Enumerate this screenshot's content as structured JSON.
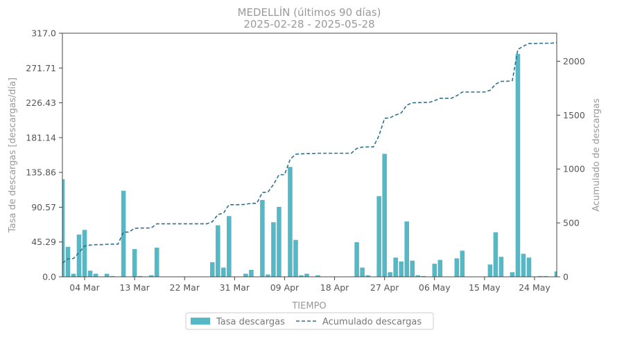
{
  "chart_data": {
    "type": "bar",
    "title": "MEDELLÍN (últimos 90 días)",
    "subtitle": "2025-02-28  -  2025-05-28",
    "xlabel": "TIEMPO",
    "ylabel": "Tasa de descargas [descargas/día]",
    "y2label": "Acumulado de descargas",
    "ylim": [
      0,
      317.0
    ],
    "y2lim": [
      0,
      2260
    ],
    "yticks": [
      "0.0",
      "45.29",
      "90.57",
      "135.86",
      "181.14",
      "226.43",
      "271.71",
      "317.0"
    ],
    "y2ticks": [
      "0",
      "500",
      "1000",
      "1500",
      "2000"
    ],
    "xticks": [
      "04 Mar",
      "13 Mar",
      "22 Mar",
      "31 Mar",
      "09 Apr",
      "18 Apr",
      "27 Apr",
      "06 May",
      "15 May",
      "24 May"
    ],
    "legend_position": "bottom-center",
    "colors": {
      "bar": "#56b7c5",
      "line": "#2e6f8e"
    },
    "series": [
      {
        "name": "Tasa descargas",
        "kind": "bar",
        "x": [
          "2025-02-28",
          "2025-03-01",
          "2025-03-02",
          "2025-03-03",
          "2025-03-04",
          "2025-03-05",
          "2025-03-06",
          "2025-03-07",
          "2025-03-08",
          "2025-03-09",
          "2025-03-10",
          "2025-03-11",
          "2025-03-12",
          "2025-03-13",
          "2025-03-14",
          "2025-03-15",
          "2025-03-16",
          "2025-03-17",
          "2025-03-18",
          "2025-03-19",
          "2025-03-20",
          "2025-03-21",
          "2025-03-22",
          "2025-03-23",
          "2025-03-24",
          "2025-03-25",
          "2025-03-26",
          "2025-03-27",
          "2025-03-28",
          "2025-03-29",
          "2025-03-30",
          "2025-03-31",
          "2025-04-01",
          "2025-04-02",
          "2025-04-03",
          "2025-04-04",
          "2025-04-05",
          "2025-04-06",
          "2025-04-07",
          "2025-04-08",
          "2025-04-09",
          "2025-04-10",
          "2025-04-11",
          "2025-04-12",
          "2025-04-13",
          "2025-04-14",
          "2025-04-15",
          "2025-04-16",
          "2025-04-17",
          "2025-04-18",
          "2025-04-19",
          "2025-04-20",
          "2025-04-21",
          "2025-04-22",
          "2025-04-23",
          "2025-04-24",
          "2025-04-25",
          "2025-04-26",
          "2025-04-27",
          "2025-04-28",
          "2025-04-29",
          "2025-04-30",
          "2025-05-01",
          "2025-05-02",
          "2025-05-03",
          "2025-05-04",
          "2025-05-05",
          "2025-05-06",
          "2025-05-07",
          "2025-05-08",
          "2025-05-09",
          "2025-05-10",
          "2025-05-11",
          "2025-05-12",
          "2025-05-13",
          "2025-05-14",
          "2025-05-15",
          "2025-05-16",
          "2025-05-17",
          "2025-05-18",
          "2025-05-19",
          "2025-05-20",
          "2025-05-21",
          "2025-05-22",
          "2025-05-23",
          "2025-05-24",
          "2025-05-25",
          "2025-05-26",
          "2025-05-27",
          "2025-05-28"
        ],
        "values": [
          127,
          39,
          4,
          55,
          61,
          8,
          4,
          0,
          4,
          1,
          0,
          112,
          0,
          36,
          1,
          0,
          2,
          38,
          0,
          0,
          0,
          0,
          0,
          0,
          0,
          0,
          0,
          19,
          67,
          12,
          79,
          0,
          0,
          4,
          9,
          0,
          100,
          3,
          71,
          91,
          0,
          143,
          48,
          2,
          4,
          0,
          2,
          0,
          0,
          0,
          0,
          0,
          0,
          45,
          12,
          2,
          0,
          105,
          160,
          6,
          25,
          20,
          72,
          21,
          2,
          1,
          0,
          17,
          22,
          0,
          0,
          24,
          34,
          0,
          0,
          0,
          0,
          16,
          58,
          26,
          0,
          6,
          290,
          30,
          25,
          0,
          1,
          1,
          0,
          7
        ]
      },
      {
        "name": "Acumulado descargas",
        "kind": "line",
        "axis": "right",
        "x": [
          "2025-02-28",
          "2025-03-01",
          "2025-03-02",
          "2025-03-03",
          "2025-03-04",
          "2025-03-05",
          "2025-03-06",
          "2025-03-07",
          "2025-03-08",
          "2025-03-09",
          "2025-03-10",
          "2025-03-11",
          "2025-03-12",
          "2025-03-13",
          "2025-03-14",
          "2025-03-15",
          "2025-03-16",
          "2025-03-17",
          "2025-03-18",
          "2025-03-19",
          "2025-03-20",
          "2025-03-21",
          "2025-03-22",
          "2025-03-23",
          "2025-03-24",
          "2025-03-25",
          "2025-03-26",
          "2025-03-27",
          "2025-03-28",
          "2025-03-29",
          "2025-03-30",
          "2025-03-31",
          "2025-04-01",
          "2025-04-02",
          "2025-04-03",
          "2025-04-04",
          "2025-04-05",
          "2025-04-06",
          "2025-04-07",
          "2025-04-08",
          "2025-04-09",
          "2025-04-10",
          "2025-04-11",
          "2025-04-12",
          "2025-04-13",
          "2025-04-14",
          "2025-04-15",
          "2025-04-16",
          "2025-04-17",
          "2025-04-18",
          "2025-04-19",
          "2025-04-20",
          "2025-04-21",
          "2025-04-22",
          "2025-04-23",
          "2025-04-24",
          "2025-04-25",
          "2025-04-26",
          "2025-04-27",
          "2025-04-28",
          "2025-04-29",
          "2025-04-30",
          "2025-05-01",
          "2025-05-02",
          "2025-05-03",
          "2025-05-04",
          "2025-05-05",
          "2025-05-06",
          "2025-05-07",
          "2025-05-08",
          "2025-05-09",
          "2025-05-10",
          "2025-05-11",
          "2025-05-12",
          "2025-05-13",
          "2025-05-14",
          "2025-05-15",
          "2025-05-16",
          "2025-05-17",
          "2025-05-18",
          "2025-05-19",
          "2025-05-20",
          "2025-05-21",
          "2025-05-22",
          "2025-05-23",
          "2025-05-24",
          "2025-05-25",
          "2025-05-26",
          "2025-05-27",
          "2025-05-28"
        ],
        "values": [
          127,
          166,
          170,
          225,
          286,
          294,
          298,
          298,
          302,
          303,
          303,
          415,
          415,
          451,
          452,
          452,
          454,
          492,
          492,
          492,
          492,
          492,
          492,
          492,
          492,
          492,
          492,
          511,
          578,
          590,
          669,
          669,
          669,
          673,
          682,
          682,
          782,
          785,
          856,
          947,
          947,
          1090,
          1138,
          1140,
          1144,
          1144,
          1146,
          1146,
          1146,
          1146,
          1146,
          1146,
          1146,
          1191,
          1203,
          1205,
          1205,
          1310,
          1470,
          1476,
          1501,
          1521,
          1593,
          1614,
          1616,
          1617,
          1617,
          1634,
          1656,
          1656,
          1656,
          1680,
          1714,
          1714,
          1714,
          1714,
          1714,
          1730,
          1788,
          1814,
          1814,
          1820,
          2110,
          2140,
          2165,
          2165,
          2166,
          2167,
          2167,
          2174
        ]
      }
    ]
  }
}
